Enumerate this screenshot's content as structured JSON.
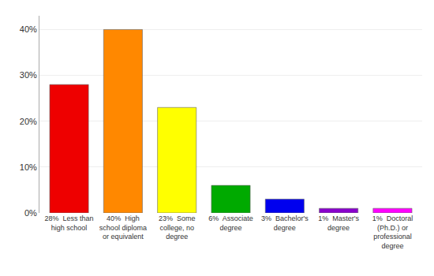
{
  "chart_data": {
    "type": "bar",
    "categories": [
      "28%  Less than\nhigh school",
      "40%  High\nschool diploma\nor equivalent",
      "23%  Some\ncollege, no\ndegree",
      "6%  Associate\ndegree",
      "3%  Bachelor's\ndegree",
      "1%  Master's\ndegree",
      "1%  Doctoral\n(Ph.D.) or\nprofessional\ndegree"
    ],
    "values": [
      28,
      40,
      23,
      6,
      3,
      1,
      1
    ],
    "colors": [
      "#ee0000",
      "#ff8800",
      "#ffff00",
      "#00aa00",
      "#0000ee",
      "#8800cc",
      "#ff00ff"
    ],
    "ylim": [
      0,
      43
    ],
    "yticks": [
      {
        "value": 0,
        "label": "0%"
      },
      {
        "value": 10,
        "label": "10%"
      },
      {
        "value": 20,
        "label": "20%"
      },
      {
        "value": 30,
        "label": "30%"
      },
      {
        "value": 40,
        "label": "40%"
      }
    ],
    "grid": true
  }
}
